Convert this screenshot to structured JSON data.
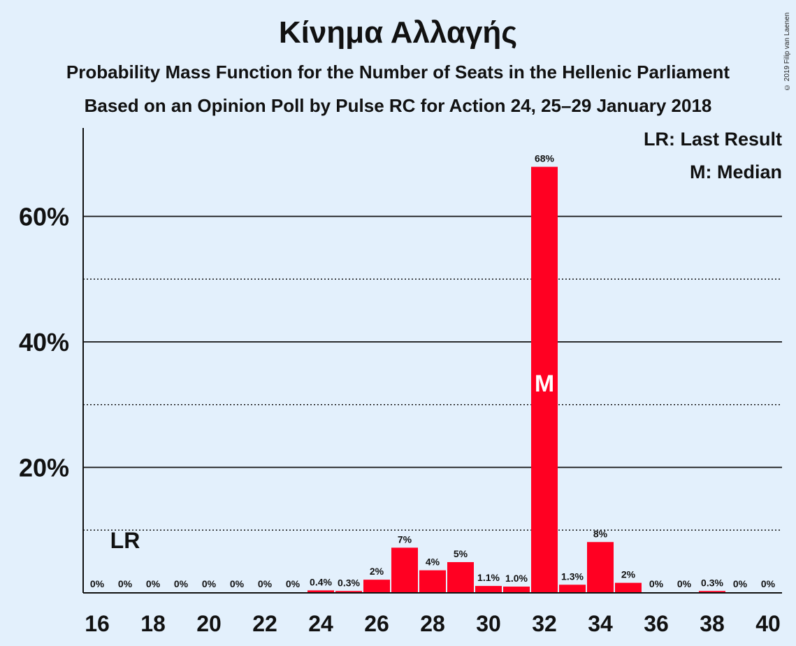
{
  "copyright": "© 2019 Filip van Laenen",
  "chart_data": {
    "type": "bar",
    "title": "Κίνημα Αλλαγής",
    "subtitle": "Probability Mass Function for the Number of Seats in the Hellenic Parliament",
    "subtitle2": "Based on an Opinion Poll by Pulse RC for Action 24, 25–29 January 2018",
    "legend": {
      "lr": "LR: Last Result",
      "m": "M: Median",
      "placement": "top-right"
    },
    "xlabel": "",
    "ylabel": "",
    "ylim": [
      0,
      74
    ],
    "y_ticks": [
      20,
      40,
      60
    ],
    "y_tick_labels": [
      "20%",
      "40%",
      "60%"
    ],
    "grid_major": [
      20,
      40,
      60
    ],
    "grid_minor": [
      10,
      30,
      50
    ],
    "x_ticks": [
      16,
      18,
      20,
      22,
      24,
      26,
      28,
      30,
      32,
      34,
      36,
      38,
      40
    ],
    "x": [
      16,
      17,
      18,
      19,
      20,
      21,
      22,
      23,
      24,
      25,
      26,
      27,
      28,
      29,
      30,
      31,
      32,
      33,
      34,
      35,
      36,
      37,
      38,
      39,
      40
    ],
    "values": [
      0,
      0,
      0,
      0,
      0,
      0,
      0,
      0,
      0.4,
      0.3,
      2,
      7,
      4,
      5,
      1.1,
      1.0,
      68,
      1.3,
      8,
      2,
      0,
      0,
      0.3,
      0,
      0
    ],
    "bar_heights_pct": [
      0,
      0,
      0,
      0,
      0,
      0,
      0,
      0,
      0.4,
      0.3,
      2.1,
      7.2,
      3.6,
      4.9,
      1.1,
      1.0,
      67.9,
      1.3,
      8.1,
      1.6,
      0,
      0,
      0.3,
      0,
      0
    ],
    "data_labels": [
      "0%",
      "0%",
      "0%",
      "0%",
      "0%",
      "0%",
      "0%",
      "0%",
      "0.4%",
      "0.3%",
      "2%",
      "7%",
      "4%",
      "5%",
      "1.1%",
      "1.0%",
      "68%",
      "1.3%",
      "8%",
      "2%",
      "0%",
      "0%",
      "0.3%",
      "0%",
      "0%"
    ],
    "last_result": {
      "x": 17,
      "label": "LR"
    },
    "median": {
      "x": 32,
      "label": "M"
    },
    "colors": {
      "bar": "#ff0022",
      "background": "#e3f0fc",
      "text": "#111111",
      "median_label": "#ffffff"
    }
  }
}
